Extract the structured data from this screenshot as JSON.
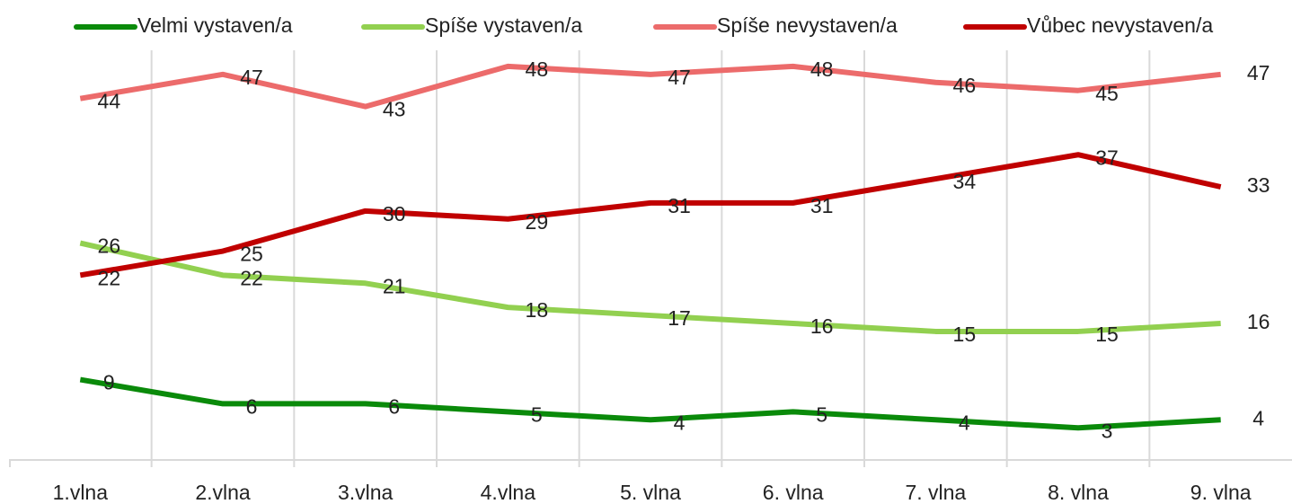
{
  "chart_data": {
    "type": "line",
    "categories": [
      "1.vlna",
      "2.vlna",
      "3.vlna",
      "4.vlna",
      "5. vlna",
      "6. vlna",
      "7. vlna",
      "8. vlna",
      "9. vlna"
    ],
    "series": [
      {
        "name": "Velmi vystaven/a",
        "color": "#0a8a0a",
        "values": [
          9,
          6,
          6,
          5,
          4,
          5,
          4,
          3,
          4
        ]
      },
      {
        "name": "Spíše vystaven/a",
        "color": "#92d050",
        "values": [
          26,
          22,
          21,
          18,
          17,
          16,
          15,
          15,
          16
        ]
      },
      {
        "name": "Spíše nevystaven/a",
        "color": "#ec6b6b",
        "values": [
          44,
          47,
          43,
          48,
          47,
          48,
          46,
          45,
          47
        ]
      },
      {
        "name": "Vůbec nevystaven/a",
        "color": "#c00000",
        "values": [
          22,
          25,
          30,
          29,
          31,
          31,
          34,
          37,
          33
        ]
      }
    ],
    "ylim": [
      -1,
      50
    ],
    "legend": "top"
  }
}
